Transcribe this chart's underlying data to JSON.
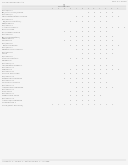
{
  "bg_color": "#f5f5f5",
  "page_bg": "#ffffff",
  "header_left": "US 20130034567 A1",
  "header_right": "Feb. 27, 2013",
  "page_number": "72",
  "section_title": "CONTINUED",
  "text_color": "#888888",
  "line_color": "#bbbbbb",
  "figsize": [
    1.28,
    1.65
  ],
  "dpi": 100
}
